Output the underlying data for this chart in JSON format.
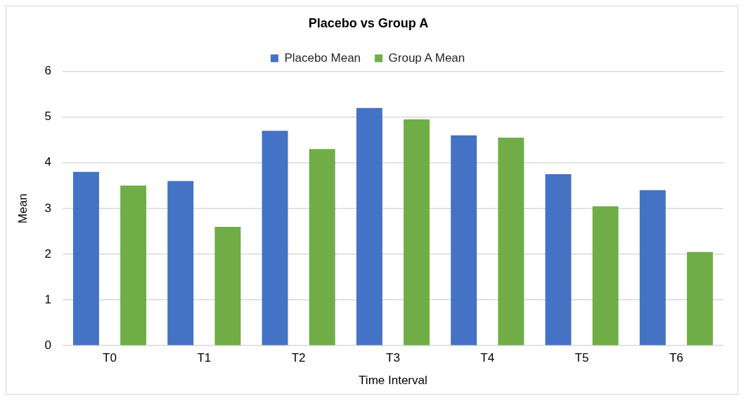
{
  "chart_data": {
    "type": "bar",
    "title": "Placebo vs Group A",
    "xlabel": "Time Interval",
    "ylabel": "Mean",
    "categories": [
      "T0",
      "T1",
      "T2",
      "T3",
      "T4",
      "T5",
      "T6"
    ],
    "series": [
      {
        "name": "Placebo Mean",
        "color": "#4472c4",
        "values": [
          3.8,
          3.6,
          4.7,
          5.2,
          4.6,
          3.75,
          3.4
        ]
      },
      {
        "name": "Group A Mean",
        "color": "#70ad47",
        "values": [
          3.5,
          2.6,
          4.3,
          4.95,
          4.55,
          3.05,
          2.05
        ]
      }
    ],
    "ylim": [
      0,
      6
    ],
    "yticks": [
      0,
      1,
      2,
      3,
      4,
      5,
      6
    ],
    "grid": "y",
    "legend": "top"
  }
}
